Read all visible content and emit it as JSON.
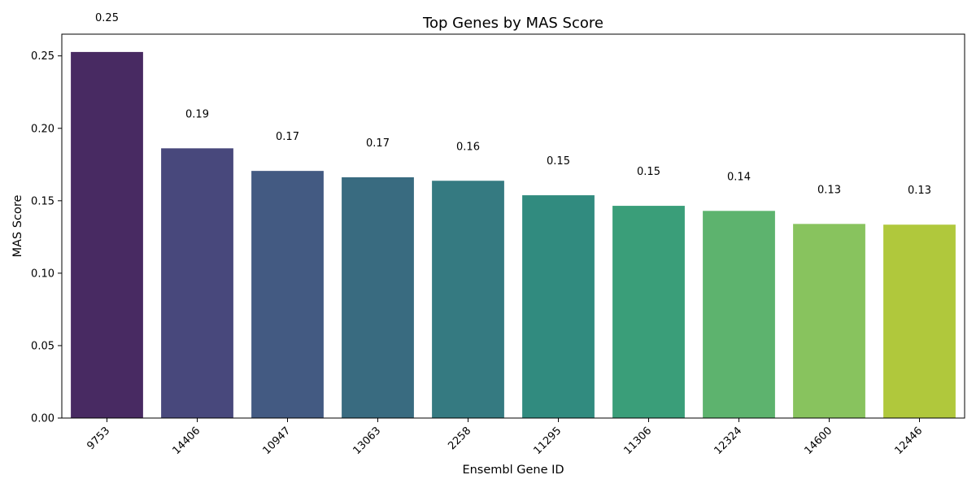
{
  "chart_data": {
    "type": "bar",
    "title": "Top Genes by MAS Score",
    "xlabel": "Ensembl Gene ID",
    "ylabel": "MAS Score",
    "categories": [
      "9753",
      "14406",
      "10947",
      "13063",
      "2258",
      "11295",
      "11306",
      "12324",
      "14600",
      "12446"
    ],
    "values": [
      0.2527,
      0.1862,
      0.1706,
      0.1662,
      0.1638,
      0.1538,
      0.1465,
      0.143,
      0.134,
      0.1335
    ],
    "data_labels": [
      "0.25",
      "0.19",
      "0.17",
      "0.17",
      "0.16",
      "0.15",
      "0.15",
      "0.14",
      "0.13",
      "0.13"
    ],
    "colors": [
      "#482a62",
      "#48487c",
      "#435a82",
      "#396b80",
      "#357a81",
      "#318b7f",
      "#3a9e79",
      "#5db36e",
      "#88c35e",
      "#b0c83c"
    ],
    "ylim": [
      0,
      0.265
    ],
    "yticks": [
      0.0,
      0.05,
      0.1,
      0.15,
      0.2,
      0.25
    ],
    "ytick_labels": [
      "0.00",
      "0.05",
      "0.10",
      "0.15",
      "0.20",
      "0.25"
    ],
    "grid": false,
    "legend": "none"
  }
}
